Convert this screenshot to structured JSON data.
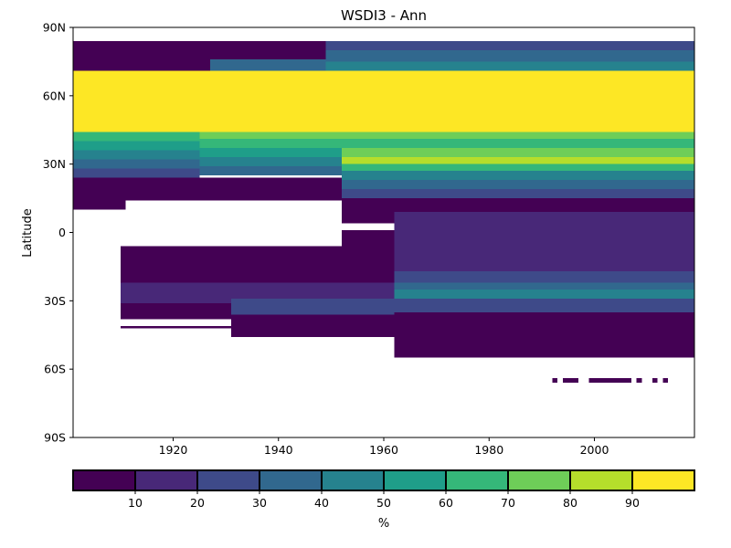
{
  "chart_data": {
    "type": "heatmap",
    "title": "WSDI3 - Ann",
    "xlabel": "",
    "ylabel": "Latitude",
    "xlim": [
      1901,
      2019
    ],
    "ylim": [
      -90,
      90
    ],
    "x_ticks": [
      1920,
      1940,
      1960,
      1980,
      2000
    ],
    "y_ticks": [
      {
        "value": 90,
        "label": "90N"
      },
      {
        "value": 60,
        "label": "60N"
      },
      {
        "value": 30,
        "label": "30N"
      },
      {
        "value": 0,
        "label": "0"
      },
      {
        "value": -30,
        "label": "30S"
      },
      {
        "value": -60,
        "label": "60S"
      },
      {
        "value": -90,
        "label": "90S"
      }
    ],
    "grid": false,
    "colorbar": {
      "label": "%",
      "ticks": [
        10,
        20,
        30,
        40,
        50,
        60,
        70,
        80,
        90
      ],
      "boundaries": [
        0,
        10,
        20,
        30,
        40,
        50,
        60,
        70,
        80,
        90,
        100
      ],
      "colors": [
        "#440154",
        "#482878",
        "#3e4a89",
        "#31688e",
        "#26828e",
        "#1f9e89",
        "#35b779",
        "#6ece58",
        "#b5de2b",
        "#fde725"
      ]
    },
    "bands": [
      {
        "x": [
          1901,
          1949
        ],
        "lat": [
          79,
          84
        ],
        "value": 5
      },
      {
        "x": [
          1901,
          1949
        ],
        "lat": [
          71,
          79
        ],
        "value": 5
      },
      {
        "x": [
          1927,
          1949
        ],
        "lat": [
          71,
          76
        ],
        "value": 35
      },
      {
        "x": [
          1949,
          2019
        ],
        "lat": [
          80,
          84
        ],
        "value": 25
      },
      {
        "x": [
          1949,
          2019
        ],
        "lat": [
          75,
          80
        ],
        "value": 35
      },
      {
        "x": [
          1949,
          2019
        ],
        "lat": [
          71,
          75
        ],
        "value": 45
      },
      {
        "x": [
          1901,
          2019
        ],
        "lat": [
          44,
          71
        ],
        "value": 95
      },
      {
        "x": [
          1901,
          1925
        ],
        "lat": [
          40,
          44
        ],
        "value": 65
      },
      {
        "x": [
          1901,
          1925
        ],
        "lat": [
          36,
          40
        ],
        "value": 55
      },
      {
        "x": [
          1901,
          1925
        ],
        "lat": [
          32,
          36
        ],
        "value": 45
      },
      {
        "x": [
          1901,
          1925
        ],
        "lat": [
          28,
          32
        ],
        "value": 35
      },
      {
        "x": [
          1901,
          1925
        ],
        "lat": [
          24,
          28
        ],
        "value": 25
      },
      {
        "x": [
          1925,
          1952
        ],
        "lat": [
          41,
          44
        ],
        "value": 75
      },
      {
        "x": [
          1925,
          1952
        ],
        "lat": [
          37,
          41
        ],
        "value": 65
      },
      {
        "x": [
          1925,
          1952
        ],
        "lat": [
          33,
          37
        ],
        "value": 55
      },
      {
        "x": [
          1925,
          1952
        ],
        "lat": [
          29,
          33
        ],
        "value": 45
      },
      {
        "x": [
          1925,
          1952
        ],
        "lat": [
          25,
          29
        ],
        "value": 35
      },
      {
        "x": [
          1952,
          2019
        ],
        "lat": [
          41,
          44
        ],
        "value": 75
      },
      {
        "x": [
          1952,
          2019
        ],
        "lat": [
          37,
          41
        ],
        "value": 65
      },
      {
        "x": [
          1952,
          2019
        ],
        "lat": [
          33,
          37
        ],
        "value": 75
      },
      {
        "x": [
          1952,
          2019
        ],
        "lat": [
          30,
          33
        ],
        "value": 85
      },
      {
        "x": [
          1952,
          2019
        ],
        "lat": [
          27,
          30
        ],
        "value": 65
      },
      {
        "x": [
          1952,
          2019
        ],
        "lat": [
          23,
          27
        ],
        "value": 45
      },
      {
        "x": [
          1952,
          2019
        ],
        "lat": [
          19,
          23
        ],
        "value": 35
      },
      {
        "x": [
          1952,
          2019
        ],
        "lat": [
          15,
          19
        ],
        "value": 25
      },
      {
        "x": [
          1901,
          1952
        ],
        "lat": [
          10,
          24
        ],
        "value": 5
      },
      {
        "x": [
          1952,
          2019
        ],
        "lat": [
          4,
          15
        ],
        "value": 5
      },
      {
        "x": [
          1911,
          1952
        ],
        "lat": [
          10,
          14
        ],
        "value": 0
      },
      {
        "x": [
          1952,
          1962
        ],
        "lat": [
          -15,
          1
        ],
        "value": 5
      },
      {
        "x": [
          1962,
          2019
        ],
        "lat": [
          -17,
          9
        ],
        "value": 15
      },
      {
        "x": [
          1910,
          1962
        ],
        "lat": [
          -17,
          -6
        ],
        "value": 5
      },
      {
        "x": [
          1910,
          1962
        ],
        "lat": [
          -22,
          -17
        ],
        "value": 5
      },
      {
        "x": [
          1910,
          1931
        ],
        "lat": [
          -31,
          -22
        ],
        "value": 15
      },
      {
        "x": [
          1931,
          1962
        ],
        "lat": [
          -29,
          -22
        ],
        "value": 15
      },
      {
        "x": [
          1931,
          1962
        ],
        "lat": [
          -36,
          -29
        ],
        "value": 25
      },
      {
        "x": [
          1910,
          1931
        ],
        "lat": [
          -38,
          -31
        ],
        "value": 5
      },
      {
        "x": [
          1931,
          1962
        ],
        "lat": [
          -46,
          -36
        ],
        "value": 5
      },
      {
        "x": [
          1962,
          2019
        ],
        "lat": [
          -22,
          -17
        ],
        "value": 25
      },
      {
        "x": [
          1962,
          2019
        ],
        "lat": [
          -25,
          -22
        ],
        "value": 35
      },
      {
        "x": [
          1962,
          2019
        ],
        "lat": [
          -29,
          -25
        ],
        "value": 45
      },
      {
        "x": [
          1962,
          2019
        ],
        "lat": [
          -35,
          -29
        ],
        "value": 25
      },
      {
        "x": [
          1962,
          2019
        ],
        "lat": [
          -55,
          -35
        ],
        "value": 5
      },
      {
        "x": [
          1910,
          1931
        ],
        "lat": [
          -42,
          -41
        ],
        "value": 5
      },
      {
        "x": [
          1992,
          1993
        ],
        "lat": [
          -66,
          -64
        ],
        "value": 5
      },
      {
        "x": [
          1994,
          1997
        ],
        "lat": [
          -66,
          -64
        ],
        "value": 5
      },
      {
        "x": [
          1999,
          2007
        ],
        "lat": [
          -66,
          -64
        ],
        "value": 5
      },
      {
        "x": [
          2008,
          2009
        ],
        "lat": [
          -66,
          -64
        ],
        "value": 5
      },
      {
        "x": [
          2011,
          2012
        ],
        "lat": [
          -66,
          -64
        ],
        "value": 5
      },
      {
        "x": [
          2013,
          2014
        ],
        "lat": [
          -66,
          -64
        ],
        "value": 5
      }
    ]
  }
}
